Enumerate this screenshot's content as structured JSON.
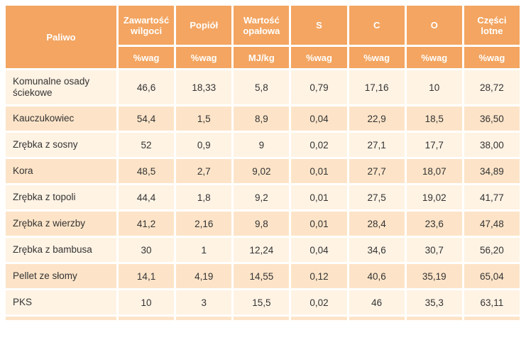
{
  "table": {
    "fuel_header": "Paliwo",
    "columns": [
      {
        "name": "Zawartość wilgoci",
        "unit": "%wag"
      },
      {
        "name": "Popiół",
        "unit": "%wag"
      },
      {
        "name": "Wartość opałowa",
        "unit": "MJ/kg"
      },
      {
        "name": "S",
        "unit": "%wag"
      },
      {
        "name": "C",
        "unit": "%wag"
      },
      {
        "name": "O",
        "unit": "%wag"
      },
      {
        "name": "Części lotne",
        "unit": "%wag"
      }
    ],
    "rows": [
      {
        "fuel": "Komunalne osady ściekowe",
        "values": [
          "46,6",
          "18,33",
          "5,8",
          "0,79",
          "17,16",
          "10",
          "28,72"
        ]
      },
      {
        "fuel": "Kauczukowiec",
        "values": [
          "54,4",
          "1,5",
          "8,9",
          "0,04",
          "22,9",
          "18,5",
          "36,50"
        ]
      },
      {
        "fuel": "Zrębka z sosny",
        "values": [
          "52",
          "0,9",
          "9",
          "0,02",
          "27,1",
          "17,7",
          "38,00"
        ]
      },
      {
        "fuel": "Kora",
        "values": [
          "48,5",
          "2,7",
          "9,02",
          "0,01",
          "27,7",
          "18,07",
          "34,89"
        ]
      },
      {
        "fuel": "Zrębka z topoli",
        "values": [
          "44,4",
          "1,8",
          "9,2",
          "0,01",
          "27,5",
          "19,02",
          "41,77"
        ]
      },
      {
        "fuel": "Zrębka z wierzby",
        "values": [
          "41,2",
          "2,16",
          "9,8",
          "0,01",
          "28,4",
          "23,6",
          "47,48"
        ]
      },
      {
        "fuel": "Zrębka z bambusa",
        "values": [
          "30",
          "1",
          "12,24",
          "0,04",
          "34,6",
          "30,7",
          "56,20"
        ]
      },
      {
        "fuel": "Pellet ze słomy",
        "values": [
          "14,1",
          "4,19",
          "14,55",
          "0,12",
          "40,6",
          "35,19",
          "65,04"
        ]
      },
      {
        "fuel": "PKS",
        "values": [
          "10",
          "3",
          "15,5",
          "0,02",
          "46",
          "35,3",
          "63,11"
        ]
      }
    ]
  },
  "colors": {
    "header": "#f3a561",
    "row_light": "#fff3e4",
    "row_dark": "#fde4c8"
  }
}
